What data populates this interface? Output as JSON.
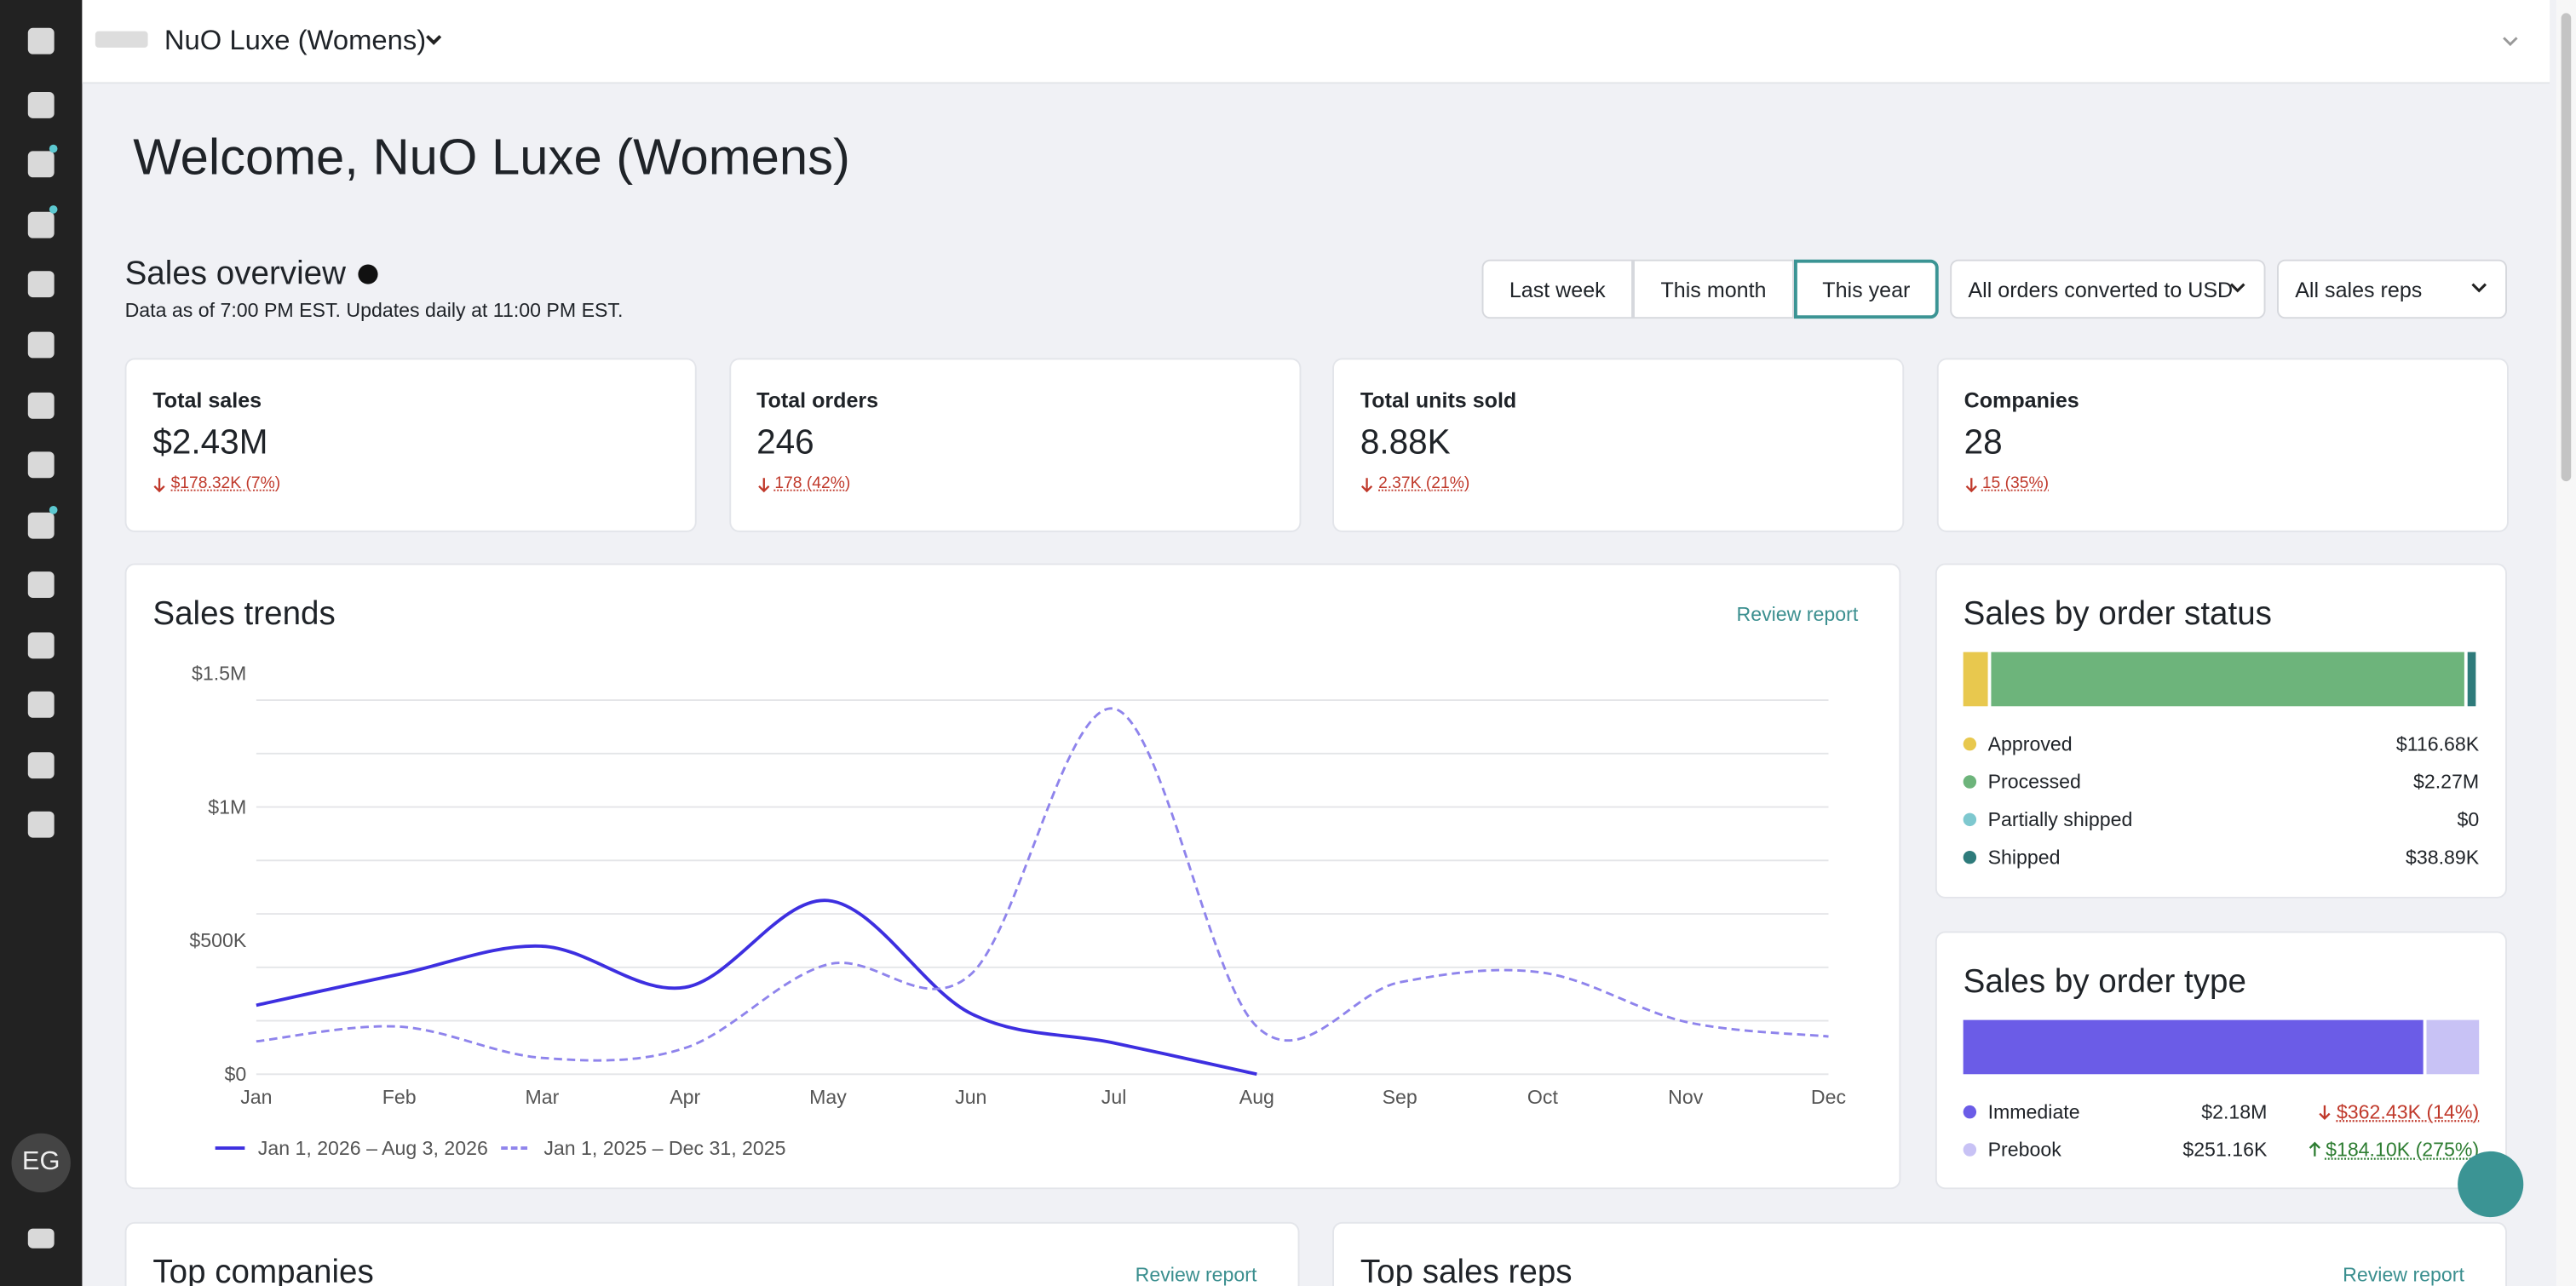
{
  "header": {
    "store": "NuO Luxe (Womens)",
    "user_initials": "EG"
  },
  "welcome": "Welcome, NuO Luxe (Womens)",
  "overview": {
    "title": "Sales overview",
    "note": "Data as of 7:00 PM EST. Updates daily at 11:00 PM EST.",
    "periods": [
      "Last week",
      "This month",
      "This year"
    ],
    "selected": 2,
    "currency_filter": "All orders converted to USD",
    "rep_filter": "All sales reps"
  },
  "kpis": [
    {
      "label": "Total sales",
      "value": "$2.43M",
      "change": "$178.32K (7%)",
      "direction": "down"
    },
    {
      "label": "Total orders",
      "value": "246",
      "change": "178 (42%)",
      "direction": "down"
    },
    {
      "label": "Total units sold",
      "value": "8.88K",
      "change": "2.37K (21%)",
      "direction": "down"
    },
    {
      "label": "Companies",
      "value": "28",
      "change": "15 (35%)",
      "direction": "down"
    }
  ],
  "chart_data": {
    "type": "line",
    "title": "Sales trends",
    "link": "Review report",
    "categories": [
      "Jan",
      "Feb",
      "Mar",
      "Apr",
      "May",
      "Jun",
      "Jul",
      "Aug",
      "Sep",
      "Oct",
      "Nov",
      "Dec"
    ],
    "ylim": [
      0,
      1500000
    ],
    "yticks": [
      {
        "value": 0,
        "label": "$0"
      },
      {
        "value": 500000,
        "label": "$500K"
      },
      {
        "value": 1000000,
        "label": "$1M"
      },
      {
        "value": 1500000,
        "label": "$1.5M"
      }
    ],
    "ygrid": [
      0,
      200000,
      400000,
      600000,
      800000,
      1000000,
      1200000,
      1400000
    ],
    "series": [
      {
        "name": "Jan 1, 2026 – Aug 3, 2026",
        "color": "#3d2fe0",
        "dashed": false,
        "values": [
          258000,
          374000,
          479000,
          325000,
          650000,
          227000,
          117000,
          0,
          null,
          null,
          null,
          null
        ]
      },
      {
        "name": "Jan 1, 2025 – Dec 31, 2025",
        "color": "#8f84ec",
        "dashed": true,
        "values": [
          123000,
          178000,
          61000,
          98000,
          411000,
          374000,
          1368000,
          178000,
          344000,
          380000,
          196000,
          141000
        ]
      }
    ]
  },
  "order_status": {
    "title": "Sales by order status",
    "items": [
      {
        "name": "Approved",
        "color": "#e8c84e",
        "value": 116680,
        "value_label": "$116.68K"
      },
      {
        "name": "Processed",
        "color": "#6db47b",
        "value": 2270000,
        "value_label": "$2.27M"
      },
      {
        "name": "Partially shipped",
        "color": "#7ec8cf",
        "value": 0,
        "value_label": "$0"
      },
      {
        "name": "Shipped",
        "color": "#2e7b7b",
        "value": 38890,
        "value_label": "$38.89K"
      }
    ]
  },
  "order_type": {
    "title": "Sales by order type",
    "items": [
      {
        "name": "Immediate",
        "color": "#6b5ce7",
        "value": 2180000,
        "value_label": "$2.18M",
        "change": "$362.43K (14%)",
        "direction": "down"
      },
      {
        "name": "Prebook",
        "color": "#c8c2f5",
        "value": 251160,
        "value_label": "$251.16K",
        "change": "$184.10K (275%)",
        "direction": "up"
      }
    ]
  },
  "top_companies": {
    "title": "Top companies",
    "link": "Review report"
  },
  "top_reps": {
    "title": "Top sales reps",
    "link": "Review report"
  }
}
